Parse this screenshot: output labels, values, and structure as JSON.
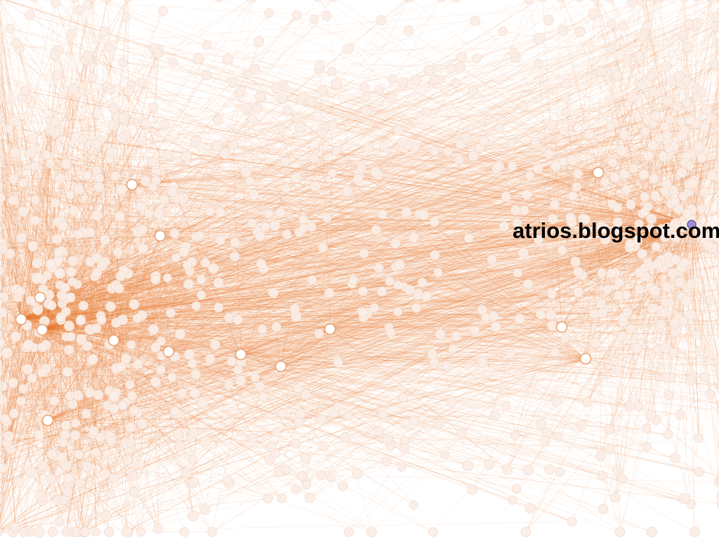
{
  "graph": {
    "highlighted_node": {
      "label": "atrios.blogspot.com"
    },
    "colors": {
      "background": "#ffffff",
      "edge": "#e8772b",
      "node_fill": "#fbeee6",
      "node_stroke": "#f2d6c4",
      "hub_fill": "#ffffff",
      "hub_stroke": "#e8a070",
      "highlight_fill": "#9a8fd6",
      "highlight_stroke": "#6a5fa8",
      "label": "#000000"
    }
  }
}
